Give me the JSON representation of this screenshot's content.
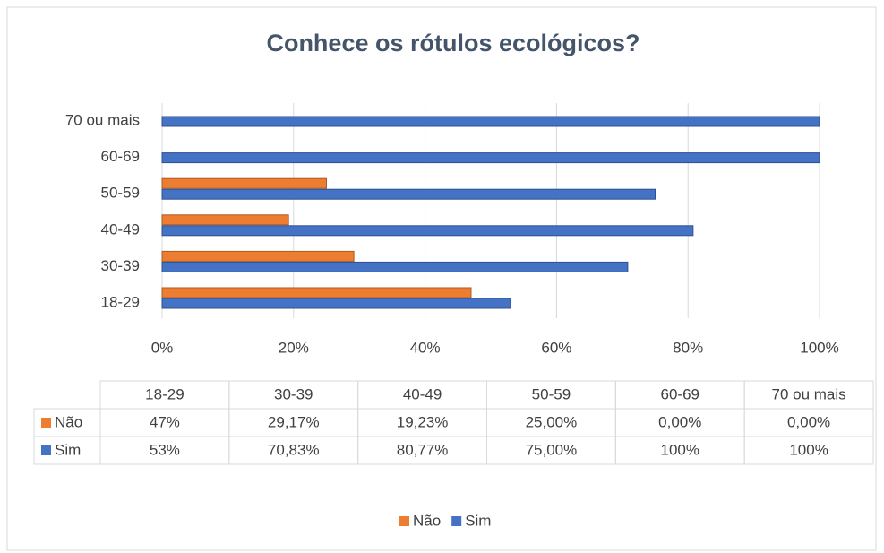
{
  "chart_data": {
    "type": "bar",
    "orientation": "horizontal",
    "title": "Conhece os rótulos ecológicos?",
    "categories": [
      "18-29",
      "30-39",
      "40-49",
      "50-59",
      "60-69",
      "70 ou mais"
    ],
    "series": [
      {
        "name": "Não",
        "color": "#ed7d31",
        "values": [
          47,
          29.17,
          19.23,
          25,
          0,
          0
        ],
        "value_labels": [
          "47%",
          "29,17%",
          "19,23%",
          "25,00%",
          "0,00%",
          "0,00%"
        ]
      },
      {
        "name": "Sim",
        "color": "#4472c4",
        "values": [
          53,
          70.83,
          80.77,
          75,
          100,
          100
        ],
        "value_labels": [
          "53%",
          "70,83%",
          "80,77%",
          "75,00%",
          "100%",
          "100%"
        ]
      }
    ],
    "xlim": [
      0,
      100
    ],
    "xticks": [
      {
        "value": 0,
        "label": "0%"
      },
      {
        "value": 20,
        "label": "20%"
      },
      {
        "value": 40,
        "label": "40%"
      },
      {
        "value": 60,
        "label": "60%"
      },
      {
        "value": 80,
        "label": "80%"
      },
      {
        "value": 100,
        "label": "100%"
      }
    ],
    "grid": true,
    "legend": "bottom",
    "data_table": true
  }
}
